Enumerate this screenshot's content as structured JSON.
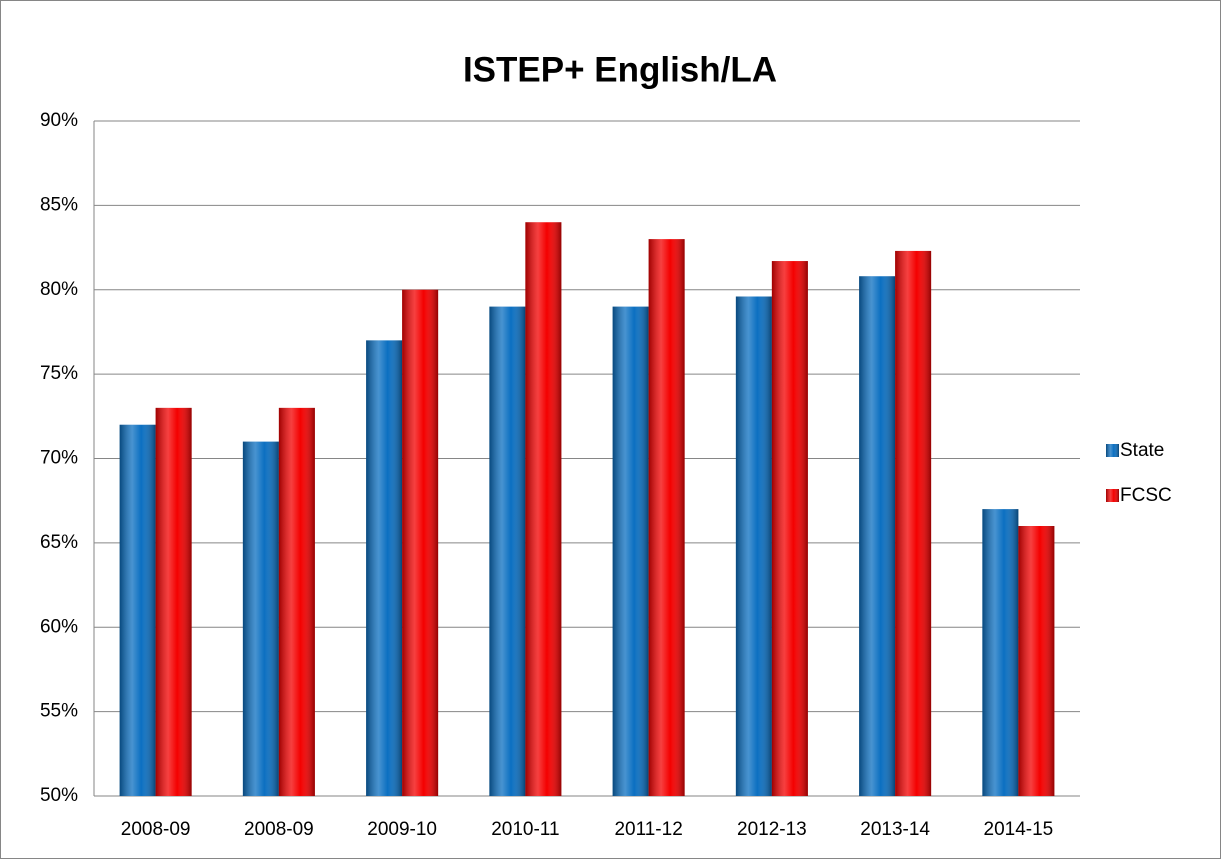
{
  "chart_data": {
    "type": "bar",
    "title": "ISTEP+ English/LA",
    "categories": [
      "2008-09",
      "2008-09",
      "2009-10",
      "2010-11",
      "2011-12",
      "2012-13",
      "2013-14",
      "2014-15"
    ],
    "series": [
      {
        "name": "State",
        "color": "#0b6fc1",
        "values": [
          72,
          71,
          77,
          79,
          79,
          79.6,
          80.8,
          67
        ]
      },
      {
        "name": "FCSC",
        "color": "#f40000",
        "values": [
          73,
          73,
          80,
          84,
          83,
          81.7,
          82.3,
          66
        ]
      }
    ],
    "ylim": [
      50,
      90
    ],
    "yticks": [
      {
        "value": 50,
        "label": "50%"
      },
      {
        "value": 55,
        "label": "55%"
      },
      {
        "value": 60,
        "label": "60%"
      },
      {
        "value": 65,
        "label": "65%"
      },
      {
        "value": 70,
        "label": "70%"
      },
      {
        "value": 75,
        "label": "75%"
      },
      {
        "value": 80,
        "label": "80%"
      },
      {
        "value": 85,
        "label": "85%"
      },
      {
        "value": 90,
        "label": "90%"
      }
    ],
    "grid": true,
    "legend": "right"
  }
}
